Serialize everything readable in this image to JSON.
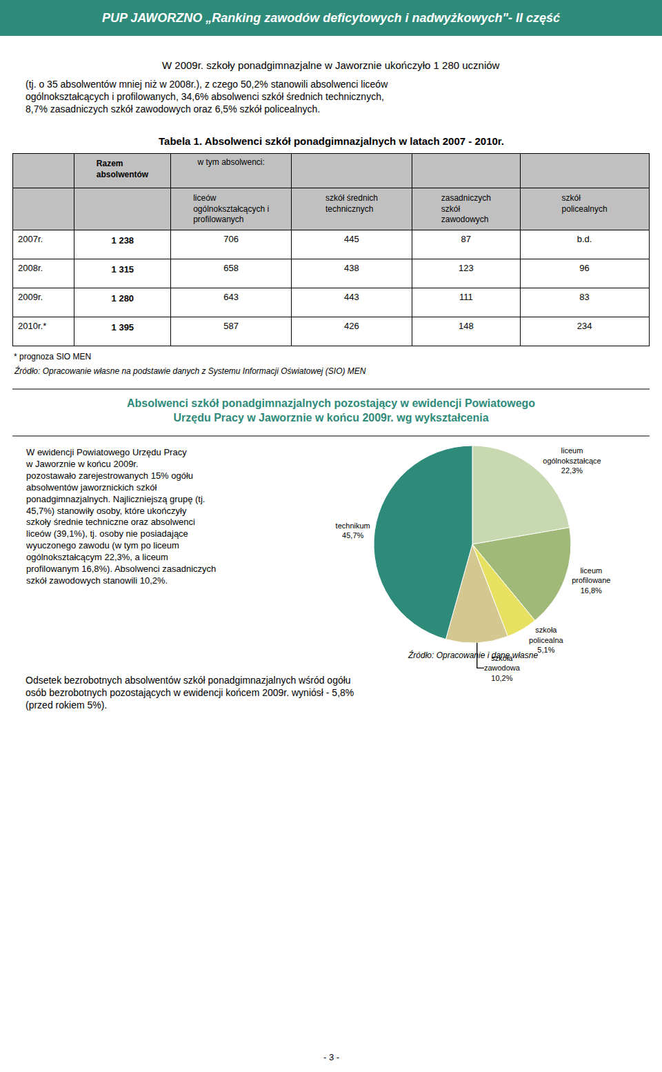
{
  "chart_data": [
    {
      "type": "table",
      "title": "Tabela 1. Absolwenci szkół ponadgimnazjalnych w latach 2007 - 2010r.",
      "columns": [
        null,
        "Razem\nabsolwentów",
        "liceów\nogólnokształcących i\nprofilowanych",
        "szkół średnich\ntechnicznych",
        "zasadniczych\nszkół\nzawodowych",
        "szkół\npolicealnych"
      ],
      "header_group": "w tym absolwenci:",
      "rows": [
        [
          "2007r.",
          "1 238",
          "706",
          "445",
          "87",
          "b.d."
        ],
        [
          "2008r.",
          "1 315",
          "658",
          "438",
          "123",
          "96"
        ],
        [
          "2009r.",
          "1 280",
          "643",
          "443",
          "111",
          "83"
        ],
        [
          "2010r.*",
          "1 395",
          "587",
          "426",
          "148",
          "234"
        ]
      ],
      "color": "#2e8b7a",
      "colors": [
        "#c0c0c0",
        "#ffffff",
        "#000000"
      ],
      "annotations": [
        "PUP JAWORZNO „Ranking zawodów deficytowych i nadwyżkowych\"- II część",
        "W 2009r. szkoły ponadgimnazjalne w Jaworznie ukończyło 1 280 uczniów",
        "(tj. o 35 absolwentów mniej niż w 2008r.), z czego 50,2% stanowili absolwenci liceów\nogólnokształcących i profilowanych, 34,6% absolwenci szkół średnich technicznych,\n8,7% zasadniczych szkół zawodowych oraz 6,5% szkół policealnych.",
        "* prognoza SIO MEN",
        "Źródło: Opracowanie własne na podstawie danych z Systemu Informacji Oświatowej (SIO) MEN"
      ]
    },
    {
      "type": "pie",
      "title": "Absolwenci szkół ponadgimnazjalnych pozostający w ewidencji Powiatowego\nUrzędu Pracy w Jaworznie w końcu 2009r. wg wykształcenia",
      "categories": [
        "liceum\nogólnokształcące",
        "liceum\nprofilowane",
        "szkoła\npolicealna",
        "szkoła\nzawodowa",
        "technikum"
      ],
      "values": [
        22.3,
        16.8,
        5.1,
        10.2,
        45.7
      ],
      "value_labels": [
        "22,3%",
        "16,8%",
        "5,1%",
        "10,2%",
        "45,7%"
      ],
      "colors": [
        "#c8d8b0",
        "#a0b878",
        "#e8e060",
        "#d4c890",
        "#2e8b7a"
      ],
      "color": "#2e8b7a",
      "data_labels": true,
      "annotations": [
        "W ewidencji Powiatowego Urzędu Pracy\nw Jaworznie w końcu 2009r.\npozostawało zarejestrowanych 15% ogółu\nabsolwentów jaworznickich szkół\nponadgimnazjalnych. Najliczniejszą grupę (tj.\n45,7%) stanowiły osoby, które ukończyły\nszkoły średnie techniczne oraz absolwenci\nliceów (39,1%), tj. osoby nie posiadające\nwyuczonego zawodu (w tym po liceum\nogólnokształcącym 22,3%, a liceum\nprofilowanym 16,8%). Absolwenci zasadniczych\nszkół zawodowych stanowili 10,2%.",
        "Źródło: Opracowanie i dane własne",
        "Odsetek bezrobotnych absolwentów szkół ponadgimnazjalnych wśród ogółu\nosób bezrobotnych pozostających w ewidencji końcem 2009r. wyniósł - 5,8%\n(przed rokiem 5%).",
        "- 3 -"
      ]
    }
  ]
}
